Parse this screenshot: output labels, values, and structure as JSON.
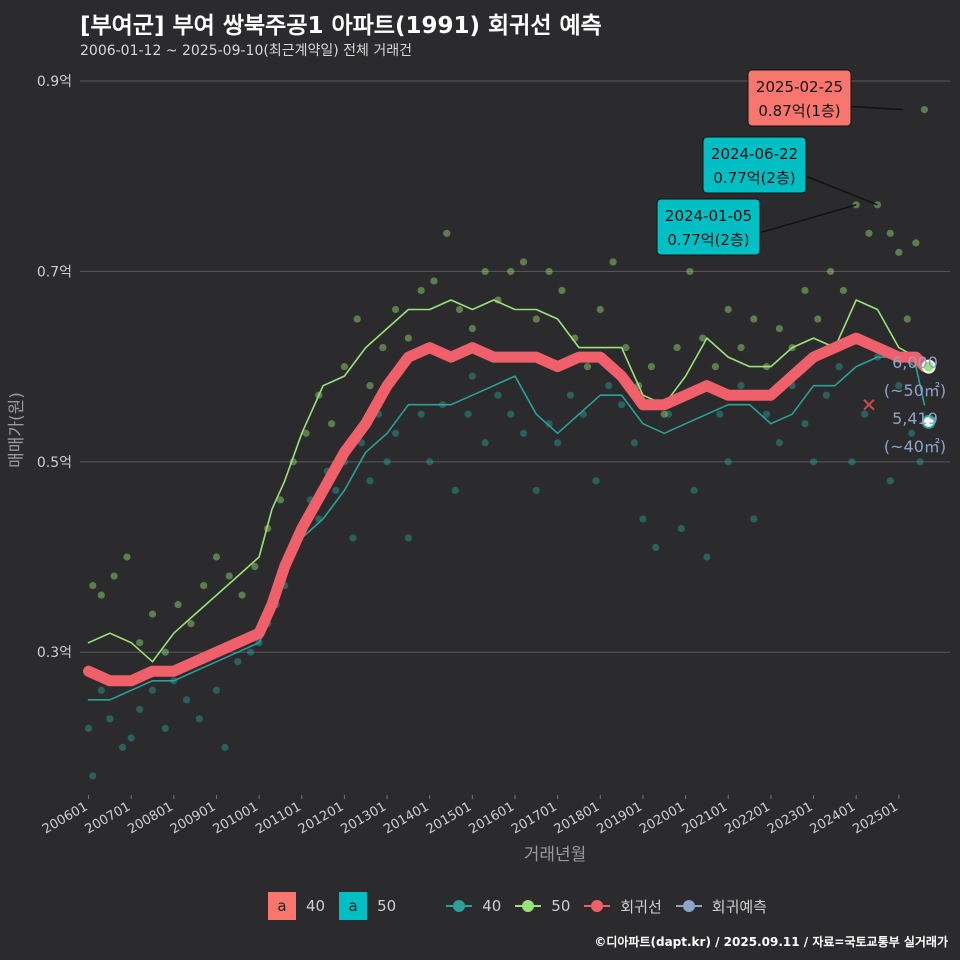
{
  "title": "[부여군] 부여 쌍북주공1 아파트(1991) 회귀선 예측",
  "subtitle": "2006-01-12 ~ 2025-09-10(최근계약일) 전체 거래건",
  "credit": "©디아파트(dapt.kr) / 2025.09.11 / 자료=국토교통부 실거래가",
  "legend": {
    "label_box_glyph": "a",
    "label_40": "40",
    "label_50": "50",
    "line_40": "40",
    "line_50": "50",
    "regression": "회귀선",
    "forecast": "회귀예측"
  },
  "colors": {
    "bg": "#2b2b2d",
    "grid": "#5a5a5c",
    "series_40": "#2aa19a",
    "series_50": "#9be27a",
    "regression": "#f0606a",
    "forecast": "#8fa3c8",
    "label_red": "#f8766d",
    "label_cyan": "#00bfc4"
  },
  "chart_data": {
    "type": "line",
    "xlabel": "거래년월",
    "ylabel": "매매가(원)",
    "x_ticks": [
      "200601",
      "200701",
      "200801",
      "200901",
      "201001",
      "201101",
      "201201",
      "201301",
      "201401",
      "201501",
      "201601",
      "201701",
      "201801",
      "201901",
      "202001",
      "202101",
      "202201",
      "202301",
      "202401",
      "202501"
    ],
    "y_ticks": [
      "0.3억",
      "0.5억",
      "0.7억",
      "0.9억"
    ],
    "y_tick_values": [
      0.3,
      0.5,
      0.7,
      0.9
    ],
    "ylim": [
      0.15,
      0.92
    ],
    "xlim": [
      2005.8,
      2026.2
    ],
    "grid": true,
    "series": [
      {
        "name": "40",
        "points": [
          [
            2006.0,
            0.25
          ],
          [
            2006.5,
            0.25
          ],
          [
            2007.0,
            0.26
          ],
          [
            2007.5,
            0.27
          ],
          [
            2008.0,
            0.27
          ],
          [
            2008.5,
            0.28
          ],
          [
            2009.0,
            0.29
          ],
          [
            2009.5,
            0.3
          ],
          [
            2010.0,
            0.31
          ],
          [
            2010.3,
            0.34
          ],
          [
            2010.6,
            0.38
          ],
          [
            2011.0,
            0.42
          ],
          [
            2011.5,
            0.44
          ],
          [
            2012.0,
            0.47
          ],
          [
            2012.5,
            0.51
          ],
          [
            2013.0,
            0.53
          ],
          [
            2013.5,
            0.56
          ],
          [
            2014.0,
            0.56
          ],
          [
            2014.5,
            0.56
          ],
          [
            2015.0,
            0.57
          ],
          [
            2015.5,
            0.58
          ],
          [
            2016.0,
            0.59
          ],
          [
            2016.5,
            0.55
          ],
          [
            2017.0,
            0.53
          ],
          [
            2017.5,
            0.55
          ],
          [
            2018.0,
            0.57
          ],
          [
            2018.5,
            0.57
          ],
          [
            2019.0,
            0.54
          ],
          [
            2019.5,
            0.53
          ],
          [
            2020.0,
            0.54
          ],
          [
            2020.5,
            0.55
          ],
          [
            2021.0,
            0.56
          ],
          [
            2021.5,
            0.56
          ],
          [
            2022.0,
            0.54
          ],
          [
            2022.5,
            0.55
          ],
          [
            2023.0,
            0.58
          ],
          [
            2023.5,
            0.58
          ],
          [
            2024.0,
            0.6
          ],
          [
            2024.5,
            0.61
          ],
          [
            2025.0,
            0.61
          ],
          [
            2025.4,
            0.6
          ],
          [
            2025.6,
            0.56
          ]
        ]
      },
      {
        "name": "50",
        "points": [
          [
            2006.0,
            0.31
          ],
          [
            2006.5,
            0.32
          ],
          [
            2007.0,
            0.31
          ],
          [
            2007.5,
            0.29
          ],
          [
            2008.0,
            0.32
          ],
          [
            2008.5,
            0.34
          ],
          [
            2009.0,
            0.36
          ],
          [
            2009.5,
            0.38
          ],
          [
            2010.0,
            0.4
          ],
          [
            2010.3,
            0.45
          ],
          [
            2010.6,
            0.48
          ],
          [
            2011.0,
            0.53
          ],
          [
            2011.5,
            0.58
          ],
          [
            2012.0,
            0.59
          ],
          [
            2012.5,
            0.62
          ],
          [
            2013.0,
            0.64
          ],
          [
            2013.5,
            0.66
          ],
          [
            2014.0,
            0.66
          ],
          [
            2014.5,
            0.67
          ],
          [
            2015.0,
            0.66
          ],
          [
            2015.5,
            0.67
          ],
          [
            2016.0,
            0.66
          ],
          [
            2016.5,
            0.66
          ],
          [
            2017.0,
            0.65
          ],
          [
            2017.5,
            0.62
          ],
          [
            2018.0,
            0.62
          ],
          [
            2018.5,
            0.62
          ],
          [
            2019.0,
            0.57
          ],
          [
            2019.5,
            0.56
          ],
          [
            2020.0,
            0.59
          ],
          [
            2020.5,
            0.63
          ],
          [
            2021.0,
            0.61
          ],
          [
            2021.5,
            0.6
          ],
          [
            2022.0,
            0.6
          ],
          [
            2022.5,
            0.62
          ],
          [
            2023.0,
            0.63
          ],
          [
            2023.5,
            0.62
          ],
          [
            2024.0,
            0.67
          ],
          [
            2024.5,
            0.66
          ],
          [
            2025.0,
            0.62
          ],
          [
            2025.4,
            0.61
          ],
          [
            2025.6,
            0.6
          ]
        ]
      },
      {
        "name": "회귀선",
        "points": [
          [
            2006.0,
            0.28
          ],
          [
            2006.5,
            0.27
          ],
          [
            2007.0,
            0.27
          ],
          [
            2007.5,
            0.28
          ],
          [
            2008.0,
            0.28
          ],
          [
            2008.5,
            0.29
          ],
          [
            2009.0,
            0.3
          ],
          [
            2009.5,
            0.31
          ],
          [
            2010.0,
            0.32
          ],
          [
            2010.3,
            0.35
          ],
          [
            2010.6,
            0.39
          ],
          [
            2011.0,
            0.43
          ],
          [
            2011.5,
            0.47
          ],
          [
            2012.0,
            0.51
          ],
          [
            2012.5,
            0.54
          ],
          [
            2013.0,
            0.58
          ],
          [
            2013.5,
            0.61
          ],
          [
            2014.0,
            0.62
          ],
          [
            2014.5,
            0.61
          ],
          [
            2015.0,
            0.62
          ],
          [
            2015.5,
            0.61
          ],
          [
            2016.0,
            0.61
          ],
          [
            2016.5,
            0.61
          ],
          [
            2017.0,
            0.6
          ],
          [
            2017.5,
            0.61
          ],
          [
            2018.0,
            0.61
          ],
          [
            2018.5,
            0.59
          ],
          [
            2019.0,
            0.56
          ],
          [
            2019.5,
            0.56
          ],
          [
            2020.0,
            0.57
          ],
          [
            2020.5,
            0.58
          ],
          [
            2021.0,
            0.57
          ],
          [
            2021.5,
            0.57
          ],
          [
            2022.0,
            0.57
          ],
          [
            2022.5,
            0.59
          ],
          [
            2023.0,
            0.61
          ],
          [
            2023.5,
            0.62
          ],
          [
            2024.0,
            0.63
          ],
          [
            2024.5,
            0.62
          ],
          [
            2025.0,
            0.61
          ],
          [
            2025.4,
            0.61
          ],
          [
            2025.6,
            0.6
          ]
        ]
      }
    ],
    "scatter_40": [
      [
        2006.0,
        0.22
      ],
      [
        2006.1,
        0.17
      ],
      [
        2006.3,
        0.26
      ],
      [
        2006.5,
        0.23
      ],
      [
        2006.8,
        0.2
      ],
      [
        2007.0,
        0.21
      ],
      [
        2007.2,
        0.24
      ],
      [
        2007.5,
        0.26
      ],
      [
        2007.8,
        0.22
      ],
      [
        2008.0,
        0.27
      ],
      [
        2008.3,
        0.25
      ],
      [
        2008.6,
        0.23
      ],
      [
        2009.0,
        0.26
      ],
      [
        2009.2,
        0.2
      ],
      [
        2009.5,
        0.29
      ],
      [
        2009.8,
        0.3
      ],
      [
        2010.0,
        0.31
      ],
      [
        2010.2,
        0.33
      ],
      [
        2010.4,
        0.35
      ],
      [
        2010.6,
        0.37
      ],
      [
        2010.8,
        0.41
      ],
      [
        2011.0,
        0.43
      ],
      [
        2011.2,
        0.46
      ],
      [
        2011.4,
        0.44
      ],
      [
        2011.6,
        0.49
      ],
      [
        2011.8,
        0.47
      ],
      [
        2012.0,
        0.5
      ],
      [
        2012.2,
        0.42
      ],
      [
        2012.4,
        0.52
      ],
      [
        2012.6,
        0.48
      ],
      [
        2012.8,
        0.55
      ],
      [
        2013.0,
        0.5
      ],
      [
        2013.2,
        0.53
      ],
      [
        2013.5,
        0.42
      ],
      [
        2013.8,
        0.55
      ],
      [
        2014.0,
        0.5
      ],
      [
        2014.3,
        0.56
      ],
      [
        2014.6,
        0.47
      ],
      [
        2014.9,
        0.55
      ],
      [
        2015.0,
        0.59
      ],
      [
        2015.3,
        0.52
      ],
      [
        2015.6,
        0.57
      ],
      [
        2015.9,
        0.55
      ],
      [
        2016.2,
        0.53
      ],
      [
        2016.5,
        0.47
      ],
      [
        2016.8,
        0.54
      ],
      [
        2017.0,
        0.52
      ],
      [
        2017.3,
        0.57
      ],
      [
        2017.6,
        0.55
      ],
      [
        2017.9,
        0.48
      ],
      [
        2018.2,
        0.58
      ],
      [
        2018.5,
        0.56
      ],
      [
        2018.8,
        0.52
      ],
      [
        2019.0,
        0.44
      ],
      [
        2019.3,
        0.41
      ],
      [
        2019.6,
        0.55
      ],
      [
        2019.9,
        0.43
      ],
      [
        2020.2,
        0.47
      ],
      [
        2020.5,
        0.4
      ],
      [
        2020.8,
        0.55
      ],
      [
        2021.0,
        0.5
      ],
      [
        2021.3,
        0.58
      ],
      [
        2021.6,
        0.44
      ],
      [
        2021.9,
        0.55
      ],
      [
        2022.2,
        0.52
      ],
      [
        2022.5,
        0.58
      ],
      [
        2022.8,
        0.54
      ],
      [
        2023.0,
        0.5
      ],
      [
        2023.3,
        0.57
      ],
      [
        2023.6,
        0.6
      ],
      [
        2023.9,
        0.5
      ],
      [
        2024.2,
        0.55
      ],
      [
        2024.5,
        0.61
      ],
      [
        2024.8,
        0.48
      ],
      [
        2025.0,
        0.58
      ],
      [
        2025.3,
        0.53
      ],
      [
        2025.5,
        0.5
      ]
    ],
    "scatter_50": [
      [
        2006.1,
        0.37
      ],
      [
        2006.3,
        0.36
      ],
      [
        2006.6,
        0.38
      ],
      [
        2006.9,
        0.4
      ],
      [
        2007.2,
        0.31
      ],
      [
        2007.5,
        0.34
      ],
      [
        2007.8,
        0.3
      ],
      [
        2008.1,
        0.35
      ],
      [
        2008.4,
        0.33
      ],
      [
        2008.7,
        0.37
      ],
      [
        2009.0,
        0.4
      ],
      [
        2009.3,
        0.38
      ],
      [
        2009.6,
        0.36
      ],
      [
        2009.9,
        0.39
      ],
      [
        2010.2,
        0.43
      ],
      [
        2010.5,
        0.46
      ],
      [
        2010.8,
        0.5
      ],
      [
        2011.1,
        0.53
      ],
      [
        2011.4,
        0.57
      ],
      [
        2011.7,
        0.54
      ],
      [
        2012.0,
        0.6
      ],
      [
        2012.3,
        0.65
      ],
      [
        2012.6,
        0.58
      ],
      [
        2012.9,
        0.62
      ],
      [
        2013.2,
        0.66
      ],
      [
        2013.5,
        0.63
      ],
      [
        2013.8,
        0.68
      ],
      [
        2014.1,
        0.69
      ],
      [
        2014.4,
        0.74
      ],
      [
        2014.7,
        0.66
      ],
      [
        2015.0,
        0.64
      ],
      [
        2015.3,
        0.7
      ],
      [
        2015.6,
        0.67
      ],
      [
        2015.9,
        0.7
      ],
      [
        2016.2,
        0.71
      ],
      [
        2016.5,
        0.65
      ],
      [
        2016.8,
        0.7
      ],
      [
        2017.1,
        0.68
      ],
      [
        2017.4,
        0.63
      ],
      [
        2017.7,
        0.6
      ],
      [
        2018.0,
        0.66
      ],
      [
        2018.3,
        0.71
      ],
      [
        2018.6,
        0.62
      ],
      [
        2018.9,
        0.58
      ],
      [
        2019.2,
        0.6
      ],
      [
        2019.5,
        0.55
      ],
      [
        2019.8,
        0.62
      ],
      [
        2020.1,
        0.7
      ],
      [
        2020.4,
        0.63
      ],
      [
        2020.7,
        0.6
      ],
      [
        2021.0,
        0.66
      ],
      [
        2021.3,
        0.62
      ],
      [
        2021.6,
        0.65
      ],
      [
        2021.9,
        0.6
      ],
      [
        2022.2,
        0.64
      ],
      [
        2022.5,
        0.62
      ],
      [
        2022.8,
        0.68
      ],
      [
        2023.1,
        0.65
      ],
      [
        2023.4,
        0.7
      ],
      [
        2023.7,
        0.68
      ],
      [
        2024.0,
        0.77
      ],
      [
        2024.3,
        0.74
      ],
      [
        2024.5,
        0.77
      ],
      [
        2024.8,
        0.74
      ],
      [
        2025.0,
        0.72
      ],
      [
        2025.2,
        0.65
      ],
      [
        2025.4,
        0.73
      ],
      [
        2025.6,
        0.87
      ]
    ],
    "forecast_points": [
      {
        "name": "50",
        "x": 2025.7,
        "y": 0.6
      },
      {
        "name": "40",
        "x": 2025.7,
        "y": 0.5419
      }
    ],
    "x_marker": {
      "x": 2024.3,
      "y": 0.56
    },
    "callouts": [
      {
        "date": "2025-02-25",
        "value": "0.87억(1층)",
        "x": 2025.1,
        "y": 0.87,
        "color": "red"
      },
      {
        "date": "2024-06-22",
        "value": "0.77억(2층)",
        "x": 2024.5,
        "y": 0.77,
        "color": "cyan"
      },
      {
        "date": "2024-01-05",
        "value": "0.77억(2층)",
        "x": 2024.0,
        "y": 0.77,
        "color": "cyan"
      }
    ],
    "forecast_labels": [
      {
        "value": "6,000",
        "area": "(~50㎡)"
      },
      {
        "value": "5,419",
        "area": "(~40㎡)"
      }
    ]
  }
}
